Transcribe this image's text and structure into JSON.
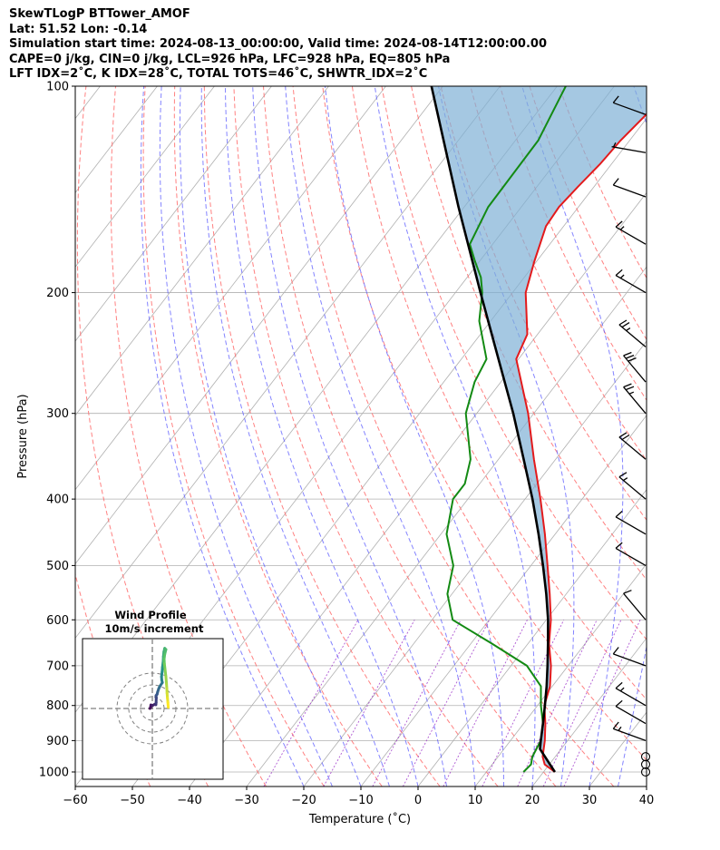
{
  "header": {
    "line1": "SkewTLogP BTTower_AMOF",
    "line2": "Lat: 51.52   Lon: -0.14",
    "line3": "Simulation start time: 2024-08-13_00:00:00, Valid time: 2024-08-14T12:00:00.00",
    "line4": "CAPE=0 j/kg, CIN=0 j/kg, LCL=926 hPa, LFC=928 hPa, EQ=805 hPa",
    "line5": "LFT IDX=2˚C, K IDX=28˚C, TOTAL TOTS=46˚C, SHWTR_IDX=2˚C"
  },
  "colors": {
    "temperature": "#e31a1c",
    "dewpoint": "#138a13",
    "parcel": "#000000",
    "cape_fill": "#7fb0d5",
    "dry_adiabat": "#ff6b6b",
    "moist_adiabat": "#5b5bff",
    "mixing_ratio": "#9b30c8",
    "isotherm": "#b0b0b0",
    "isobar": "#b0b0b0",
    "ring": "#808080"
  },
  "chart_data": {
    "type": "line",
    "title": "SkewTLogP BTTower_AMOF",
    "xlabel": "Temperature (˚C)",
    "ylabel": "Pressure (hPa)",
    "xlim": [
      -60,
      40
    ],
    "ylim": [
      1050,
      100
    ],
    "xticks": [
      "−60",
      "−50",
      "−40",
      "−30",
      "−20",
      "−10",
      "0",
      "10",
      "20",
      "30",
      "40"
    ],
    "xtick_values": [
      -60,
      -50,
      -40,
      -30,
      -20,
      -10,
      0,
      10,
      20,
      30,
      40
    ],
    "yticks": [
      "100",
      "200",
      "300",
      "400",
      "500",
      "600",
      "700",
      "800",
      "900",
      "1000"
    ],
    "ytick_values": [
      100,
      200,
      300,
      400,
      500,
      600,
      700,
      800,
      900,
      1000
    ],
    "temperature": [
      [
        1000,
        22.0
      ],
      [
        975,
        19.2
      ],
      [
        950,
        17.8
      ],
      [
        900,
        16.0
      ],
      [
        850,
        13.8
      ],
      [
        800,
        11.2
      ],
      [
        750,
        9.6
      ],
      [
        700,
        7.0
      ],
      [
        650,
        3.7
      ],
      [
        600,
        0.8
      ],
      [
        550,
        -2.9
      ],
      [
        500,
        -7.1
      ],
      [
        450,
        -11.8
      ],
      [
        400,
        -17.3
      ],
      [
        350,
        -23.8
      ],
      [
        300,
        -31.0
      ],
      [
        250,
        -40.4
      ],
      [
        230,
        -41.8
      ],
      [
        200,
        -47.7
      ],
      [
        180,
        -50.4
      ],
      [
        160,
        -53.1
      ],
      [
        150,
        -53.4
      ],
      [
        140,
        -52.8
      ],
      [
        130,
        -52.0
      ],
      [
        120,
        -51.6
      ],
      [
        110,
        -50.6
      ],
      [
        100,
        -50.4
      ]
    ],
    "dewpoint": [
      [
        1000,
        16.5
      ],
      [
        975,
        16.8
      ],
      [
        950,
        16.0
      ],
      [
        900,
        15.3
      ],
      [
        850,
        13.4
      ],
      [
        800,
        10.6
      ],
      [
        750,
        8.0
      ],
      [
        700,
        2.8
      ],
      [
        650,
        -6.3
      ],
      [
        600,
        -16.4
      ],
      [
        550,
        -20.8
      ],
      [
        500,
        -23.6
      ],
      [
        450,
        -29.0
      ],
      [
        400,
        -32.6
      ],
      [
        380,
        -32.6
      ],
      [
        350,
        -34.9
      ],
      [
        300,
        -41.9
      ],
      [
        270,
        -44.6
      ],
      [
        250,
        -45.6
      ],
      [
        220,
        -52.0
      ],
      [
        200,
        -55.3
      ],
      [
        190,
        -57.6
      ],
      [
        180,
        -60.8
      ],
      [
        170,
        -64.0
      ],
      [
        150,
        -65.8
      ],
      [
        120,
        -66.0
      ],
      [
        100,
        -68.5
      ]
    ],
    "parcel": [
      [
        1000,
        22.0
      ],
      [
        926,
        16.3
      ],
      [
        900,
        15.3
      ],
      [
        850,
        13.4
      ],
      [
        800,
        11.3
      ],
      [
        750,
        9.0
      ],
      [
        700,
        6.4
      ],
      [
        650,
        3.5
      ],
      [
        600,
        0.3
      ],
      [
        550,
        -3.5
      ],
      [
        500,
        -7.9
      ],
      [
        450,
        -12.9
      ],
      [
        400,
        -18.7
      ],
      [
        350,
        -25.6
      ],
      [
        300,
        -33.6
      ],
      [
        250,
        -43.5
      ],
      [
        200,
        -55.6
      ],
      [
        150,
        -71.0
      ],
      [
        100,
        -92.0
      ]
    ],
    "wind_barbs": [
      {
        "p": 1000,
        "calm": true
      },
      {
        "p": 975,
        "calm": true
      },
      {
        "p": 950,
        "calm": true
      },
      {
        "p": 900,
        "speed_kt": 15,
        "dir": 290
      },
      {
        "p": 850,
        "speed_kt": 10,
        "dir": 300
      },
      {
        "p": 800,
        "speed_kt": 15,
        "dir": 300
      },
      {
        "p": 700,
        "speed_kt": 10,
        "dir": 290
      },
      {
        "p": 600,
        "speed_kt": 10,
        "dir": 320
      },
      {
        "p": 500,
        "speed_kt": 10,
        "dir": 300
      },
      {
        "p": 450,
        "speed_kt": 10,
        "dir": 300
      },
      {
        "p": 400,
        "speed_kt": 15,
        "dir": 310
      },
      {
        "p": 350,
        "speed_kt": 20,
        "dir": 310
      },
      {
        "p": 300,
        "speed_kt": 25,
        "dir": 320
      },
      {
        "p": 270,
        "speed_kt": 30,
        "dir": 320
      },
      {
        "p": 240,
        "speed_kt": 25,
        "dir": 310
      },
      {
        "p": 200,
        "speed_kt": 15,
        "dir": 300
      },
      {
        "p": 170,
        "speed_kt": 15,
        "dir": 300
      },
      {
        "p": 145,
        "speed_kt": 10,
        "dir": 290
      },
      {
        "p": 125,
        "speed_kt": 5,
        "dir": 280
      },
      {
        "p": 110,
        "speed_kt": 10,
        "dir": 290
      }
    ],
    "hodograph": {
      "title": "Wind Profile",
      "subtitle": "10m/s increment",
      "ring_step_ms": 10,
      "points": [
        [
          -2,
          0
        ],
        [
          -1.5,
          1
        ],
        [
          -1.2,
          3
        ],
        [
          0,
          2.5
        ],
        [
          2,
          3.5
        ],
        [
          3,
          3.2
        ],
        [
          3.2,
          5
        ],
        [
          3.3,
          9
        ],
        [
          3.2,
          11
        ],
        [
          4,
          12
        ],
        [
          4.5,
          14
        ],
        [
          5.5,
          17
        ],
        [
          6.5,
          19
        ],
        [
          8.5,
          22
        ],
        [
          8.0,
          24
        ],
        [
          7.8,
          27
        ],
        [
          8.3,
          31
        ],
        [
          8.6,
          35
        ],
        [
          9.2,
          40
        ],
        [
          9.4,
          44
        ],
        [
          9.8,
          48
        ],
        [
          10.5,
          51
        ],
        [
          11.5,
          50
        ],
        [
          10.5,
          46
        ],
        [
          10.0,
          42
        ],
        [
          10.2,
          38
        ],
        [
          10.8,
          33
        ],
        [
          11.5,
          27
        ],
        [
          12.0,
          21
        ],
        [
          12.3,
          17
        ],
        [
          12.5,
          13
        ],
        [
          12.8,
          9
        ],
        [
          13.2,
          5
        ],
        [
          13.5,
          1
        ]
      ]
    }
  }
}
